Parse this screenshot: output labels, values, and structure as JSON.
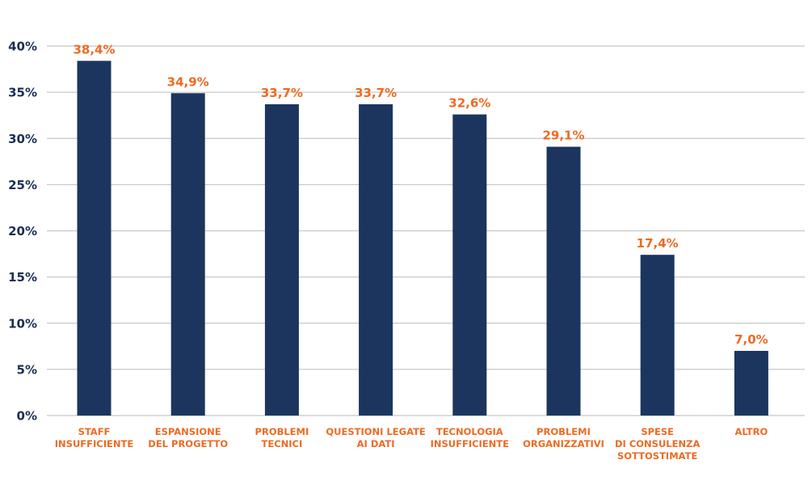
{
  "chart_data": {
    "type": "bar",
    "categories": [
      [
        "STAFF",
        "INSUFFICIENTE"
      ],
      [
        "ESPANSIONE",
        "DEL PROGETTO"
      ],
      [
        "PROBLEMI",
        "TECNICI"
      ],
      [
        "QUESTIONI LEGATE",
        "AI DATI"
      ],
      [
        "TECNOLOGIA",
        "INSUFFICIENTE"
      ],
      [
        "PROBLEMI",
        "ORGANIZZATIVI"
      ],
      [
        "SPESE",
        "DI CONSULENZA",
        "SOTTOSTIMATE"
      ],
      [
        "ALTRO"
      ]
    ],
    "values": [
      38.4,
      34.9,
      33.7,
      33.7,
      32.6,
      29.1,
      17.4,
      7.0
    ],
    "data_labels": [
      "38,4%",
      "34,9%",
      "33,7%",
      "33,7%",
      "32,6%",
      "29,1%",
      "17,4%",
      "7,0%"
    ],
    "yticks": [
      0,
      5,
      10,
      15,
      20,
      25,
      30,
      35,
      40
    ],
    "ytick_labels": [
      "0%",
      "5%",
      "10%",
      "15%",
      "20%",
      "25%",
      "30%",
      "35%",
      "40%"
    ],
    "ylim": [
      0,
      40
    ],
    "grid": true,
    "legend": "none",
    "title": "",
    "xlabel": "",
    "ylabel": "",
    "colors": {
      "bar": "#1c355e",
      "data_label": "#ee6a22",
      "category_label": "#ee6a22",
      "ytick_label": "#1b2f55",
      "grid": "#c8c8c8"
    }
  }
}
